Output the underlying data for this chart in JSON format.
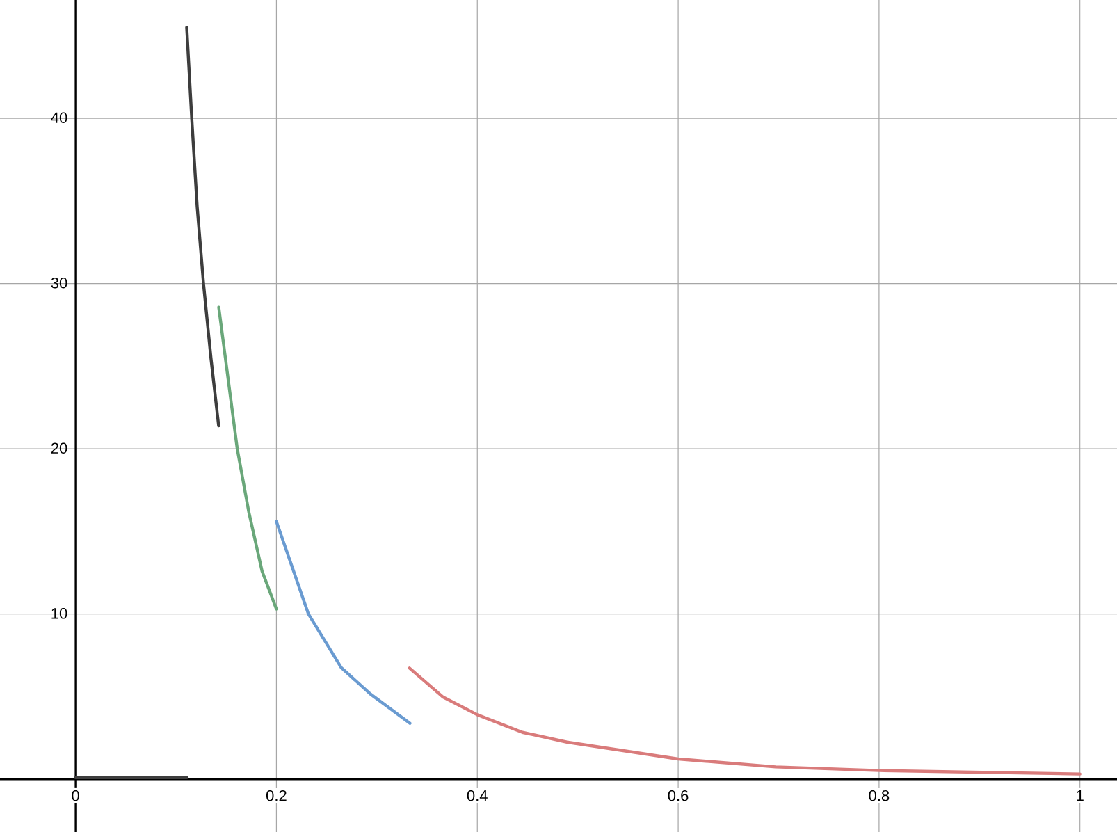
{
  "chart_data": {
    "type": "line",
    "xlim": [
      -0.0752,
      1.0369
    ],
    "ylim": [
      -3.19,
      47.16
    ],
    "xticks": [
      0,
      0.2,
      0.4,
      0.6,
      0.8,
      1
    ],
    "yticks": [
      10,
      20,
      30,
      40
    ],
    "grid": true,
    "line_style": "solid",
    "marker": "none",
    "series": [
      {
        "color": "#3d3d3d",
        "x": [
          0,
          0.111
        ],
        "values": [
          0.1,
          0.1
        ]
      },
      {
        "color": "#3d3d3d",
        "x": [
          0.1107,
          0.1157,
          0.1211,
          0.1274,
          0.1348,
          0.1425
        ],
        "values": [
          45.5,
          40,
          34.66,
          30,
          25.5,
          21.39
        ]
      },
      {
        "color": "#6aa77a",
        "x": [
          0.1426,
          0.161,
          0.1726,
          0.1857,
          0.2
        ],
        "values": [
          28.56,
          20,
          16.15,
          12.6,
          10.3
        ]
      },
      {
        "color": "#6a9bd1",
        "x": [
          0.2,
          0.2319,
          0.2645,
          0.2936,
          0.333
        ],
        "values": [
          15.6,
          10,
          6.76,
          5.16,
          3.39
        ]
      },
      {
        "color": "#d97b7b",
        "x": [
          0.3325,
          0.3656,
          0.4,
          0.445,
          0.4892,
          0.6,
          0.697,
          0.8,
          1
        ],
        "values": [
          6.73,
          4.99,
          3.91,
          2.84,
          2.25,
          1.23,
          0.75,
          0.53,
          0.32
        ]
      }
    ]
  }
}
